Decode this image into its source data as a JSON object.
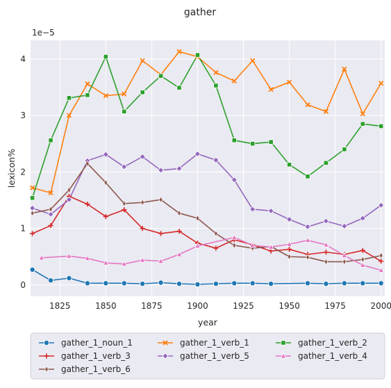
{
  "chart_data": {
    "type": "line",
    "title": "gather",
    "xlabel": "year",
    "ylabel": "lexicon%",
    "y_scale_label": "1e−5",
    "xlim": [
      1809,
      2002
    ],
    "ylim": [
      -0.2,
      4.33
    ],
    "x_ticks": [
      1825,
      1850,
      1875,
      1900,
      1925,
      1950,
      1975,
      2000
    ],
    "y_ticks": [
      0,
      1,
      2,
      3,
      4
    ],
    "grid": true,
    "legend_position": "bottom",
    "series": [
      {
        "name": "gather_1_noun_1",
        "color": "#1f77b4",
        "marker": "circle",
        "x": [
          1810,
          1820,
          1830,
          1840,
          1850,
          1860,
          1870,
          1880,
          1890,
          1900,
          1910,
          1920,
          1930,
          1940,
          1960,
          1970,
          1980,
          1990,
          2000
        ],
        "y": [
          0.27,
          0.08,
          0.12,
          0.03,
          0.03,
          0.03,
          0.02,
          0.04,
          0.02,
          0.01,
          0.02,
          0.03,
          0.03,
          0.02,
          0.03,
          0.02,
          0.03,
          0.03,
          0.03
        ]
      },
      {
        "name": "gather_1_verb_1",
        "color": "#ff7f0e",
        "marker": "x",
        "x": [
          1810,
          1820,
          1830,
          1840,
          1850,
          1860,
          1870,
          1880,
          1890,
          1900,
          1910,
          1920,
          1930,
          1940,
          1950,
          1960,
          1970,
          1980,
          1990,
          2000
        ],
        "y": [
          1.72,
          1.63,
          3.0,
          3.56,
          3.35,
          3.38,
          3.97,
          3.72,
          4.13,
          4.04,
          3.76,
          3.61,
          3.97,
          3.46,
          3.59,
          3.19,
          3.07,
          3.82,
          3.03,
          3.57
        ]
      },
      {
        "name": "gather_1_verb_2",
        "color": "#2ca02c",
        "marker": "square",
        "x": [
          1810,
          1820,
          1830,
          1840,
          1850,
          1860,
          1870,
          1880,
          1890,
          1900,
          1910,
          1920,
          1930,
          1940,
          1950,
          1960,
          1970,
          1980,
          1990,
          2000
        ],
        "y": [
          1.54,
          2.56,
          3.31,
          3.36,
          4.04,
          3.07,
          3.41,
          3.7,
          3.49,
          4.07,
          3.53,
          2.56,
          2.5,
          2.53,
          2.13,
          1.92,
          2.16,
          2.4,
          2.85,
          2.81
        ]
      },
      {
        "name": "gather_1_verb_3",
        "color": "#d62728",
        "marker": "plus",
        "x": [
          1810,
          1820,
          1830,
          1840,
          1850,
          1860,
          1870,
          1880,
          1890,
          1900,
          1910,
          1920,
          1930,
          1940,
          1950,
          1960,
          1970,
          1980,
          1990,
          2000
        ],
        "y": [
          0.91,
          1.05,
          1.57,
          1.43,
          1.21,
          1.33,
          1.0,
          0.91,
          0.95,
          0.74,
          0.65,
          0.8,
          0.71,
          0.6,
          0.63,
          0.54,
          0.58,
          0.54,
          0.61,
          0.42
        ]
      },
      {
        "name": "gather_1_verb_5",
        "color": "#9467bd",
        "marker": "diamond",
        "x": [
          1810,
          1820,
          1830,
          1840,
          1850,
          1860,
          1870,
          1880,
          1890,
          1900,
          1910,
          1920,
          1930,
          1940,
          1950,
          1960,
          1970,
          1980,
          1990,
          2000
        ],
        "y": [
          1.36,
          1.25,
          1.51,
          2.2,
          2.31,
          2.09,
          2.27,
          2.03,
          2.06,
          2.32,
          2.21,
          1.86,
          1.34,
          1.31,
          1.16,
          1.03,
          1.13,
          1.04,
          1.18,
          1.41
        ]
      },
      {
        "name": "gather_1_verb_6",
        "color": "#8c564b",
        "marker": "thin-diamond",
        "x": [
          1810,
          1820,
          1830,
          1840,
          1850,
          1860,
          1870,
          1880,
          1890,
          1900,
          1910,
          1920,
          1930,
          1940,
          1950,
          1960,
          1970,
          1980,
          1990,
          2000
        ],
        "y": [
          1.27,
          1.34,
          1.68,
          2.15,
          1.81,
          1.44,
          1.46,
          1.51,
          1.27,
          1.18,
          0.91,
          0.7,
          0.65,
          0.68,
          0.5,
          0.49,
          0.41,
          0.41,
          0.45,
          0.52
        ]
      },
      {
        "name": "gather_1_verb_4",
        "color": "#e377c2",
        "marker": "triangle",
        "x": [
          1815,
          1830,
          1840,
          1850,
          1860,
          1870,
          1880,
          1890,
          1900,
          1920,
          1930,
          1940,
          1950,
          1960,
          1970,
          1980,
          1990,
          2000
        ],
        "y": [
          0.48,
          0.51,
          0.47,
          0.39,
          0.37,
          0.44,
          0.42,
          0.54,
          0.69,
          0.84,
          0.7,
          0.67,
          0.72,
          0.79,
          0.71,
          0.52,
          0.35,
          0.26
        ]
      }
    ],
    "legend_order": [
      0,
      1,
      2,
      3,
      4,
      6,
      5
    ]
  }
}
